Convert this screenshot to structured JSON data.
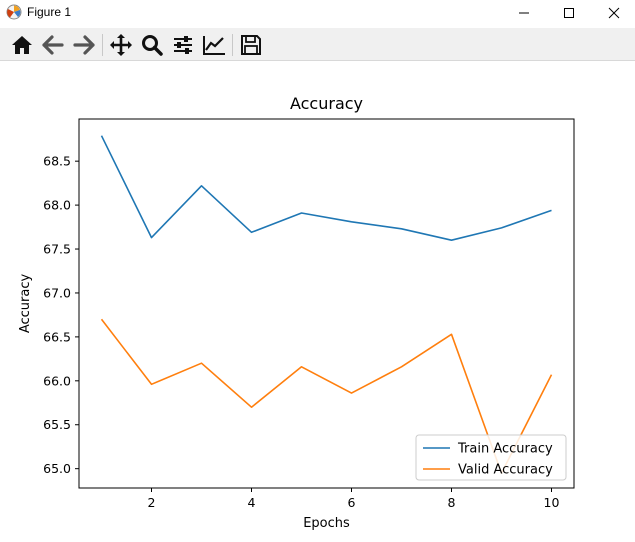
{
  "window": {
    "title": "Figure 1",
    "controls": [
      "minimize",
      "maximize",
      "close"
    ]
  },
  "toolbar": {
    "tools": [
      {
        "name": "home-icon",
        "tooltip": "Home"
      },
      {
        "name": "back-arrow-icon",
        "tooltip": "Back"
      },
      {
        "name": "forward-arrow-icon",
        "tooltip": "Forward"
      },
      {
        "name": "pan-icon",
        "tooltip": "Pan"
      },
      {
        "name": "zoom-icon",
        "tooltip": "Zoom"
      },
      {
        "name": "subplots-icon",
        "tooltip": "Subplots"
      },
      {
        "name": "customize-icon",
        "tooltip": "Customize"
      },
      {
        "name": "save-icon",
        "tooltip": "Save"
      }
    ]
  },
  "chart_data": {
    "type": "line",
    "title": "Accuracy",
    "xlabel": "Epochs",
    "ylabel": "Accuracy",
    "x": [
      1,
      2,
      3,
      4,
      5,
      6,
      7,
      8,
      9,
      10
    ],
    "xlim": [
      0.55,
      10.45
    ],
    "ylim": [
      64.78,
      68.98
    ],
    "xticks": [
      2,
      4,
      6,
      8,
      10
    ],
    "yticks": [
      65.0,
      65.5,
      66.0,
      66.5,
      67.0,
      67.5,
      68.0,
      68.5
    ],
    "series": [
      {
        "name": "Train Accuracy",
        "color": "#1f77b4",
        "values": [
          68.79,
          67.63,
          68.22,
          67.69,
          67.91,
          67.81,
          67.73,
          67.6,
          67.74,
          67.94
        ]
      },
      {
        "name": "Valid Accuracy",
        "color": "#ff7f0e",
        "values": [
          66.7,
          65.96,
          66.2,
          65.7,
          66.16,
          65.86,
          66.16,
          66.53,
          64.95,
          66.07
        ]
      }
    ],
    "legend": "lower-right",
    "grid": false
  }
}
